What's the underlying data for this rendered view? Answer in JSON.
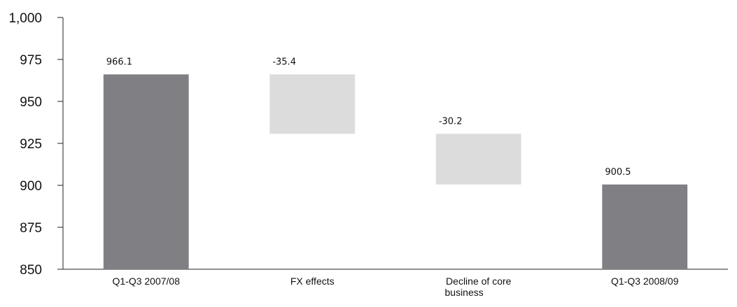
{
  "chart_data": {
    "type": "bar",
    "subtype": "waterfall",
    "title": "",
    "xlabel": "",
    "ylabel": "",
    "ylim": [
      850,
      1000
    ],
    "yticks": [
      "850",
      "875",
      "900",
      "925",
      "950",
      "975",
      "1,000"
    ],
    "grid": false,
    "categories": [
      {
        "label": [
          "Q1-Q3 2007/08"
        ],
        "kind": "total",
        "start": 850,
        "end": 966.1,
        "value_label": "966.1"
      },
      {
        "label": [
          "FX effects"
        ],
        "kind": "delta",
        "start": 966.1,
        "end": 930.7,
        "value_label": "-35.4"
      },
      {
        "label": [
          "Decline of core",
          "business"
        ],
        "kind": "delta",
        "start": 930.7,
        "end": 900.5,
        "value_label": "-30.2"
      },
      {
        "label": [
          "Q1-Q3 2008/09"
        ],
        "kind": "total",
        "start": 850,
        "end": 900.5,
        "value_label": "900.5"
      }
    ],
    "colors": {
      "total": "#807f84",
      "delta": "#dcdcdc"
    }
  }
}
